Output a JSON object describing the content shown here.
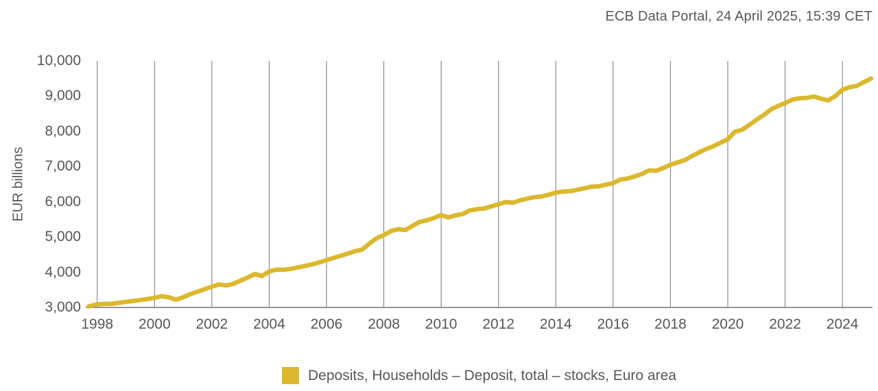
{
  "header": {
    "source_line": "ECB Data Portal, 24 April 2025, 15:39 CET"
  },
  "colors": {
    "series": "#DBB82D",
    "text": "#545659",
    "grid": "#747474",
    "axis": "#747474"
  },
  "legend": {
    "label": "Deposits, Households – Deposit, total – stocks, Euro area",
    "swatch_color": "#DBB82D"
  },
  "chart_data": {
    "type": "line",
    "title": "",
    "xlabel": "",
    "ylabel": "EUR billions",
    "unit": "EUR billions",
    "grid": "vertical-only",
    "legend_position": "bottom-center",
    "xlim": [
      1997.6,
      2025.05
    ],
    "ylim": [
      3000,
      10000
    ],
    "x_ticks": [
      1998,
      2000,
      2002,
      2004,
      2006,
      2008,
      2010,
      2012,
      2014,
      2016,
      2018,
      2020,
      2022,
      2024
    ],
    "y_ticks": [
      3000,
      4000,
      5000,
      6000,
      7000,
      8000,
      9000,
      10000
    ],
    "y_tick_labels": [
      "3,000",
      "4,000",
      "5,000",
      "6,000",
      "7,000",
      "8,000",
      "9,000",
      "10,000"
    ],
    "series": [
      {
        "name": "Deposits, Households – Deposit, total – stocks, Euro area",
        "color": "#DBB82D",
        "x": [
          1997.7,
          1998.0,
          1998.25,
          1998.5,
          1998.75,
          1999.0,
          1999.25,
          1999.5,
          1999.75,
          2000.0,
          2000.25,
          2000.5,
          2000.75,
          2001.0,
          2001.25,
          2001.5,
          2001.75,
          2002.0,
          2002.25,
          2002.5,
          2002.75,
          2003.0,
          2003.25,
          2003.5,
          2003.75,
          2004.0,
          2004.25,
          2004.5,
          2004.75,
          2005.0,
          2005.25,
          2005.5,
          2005.75,
          2006.0,
          2006.25,
          2006.5,
          2006.75,
          2007.0,
          2007.25,
          2007.5,
          2007.75,
          2008.0,
          2008.25,
          2008.5,
          2008.75,
          2009.0,
          2009.25,
          2009.5,
          2009.75,
          2010.0,
          2010.25,
          2010.5,
          2010.75,
          2011.0,
          2011.25,
          2011.5,
          2011.75,
          2012.0,
          2012.25,
          2012.5,
          2012.75,
          2013.0,
          2013.25,
          2013.5,
          2013.75,
          2014.0,
          2014.25,
          2014.5,
          2014.75,
          2015.0,
          2015.25,
          2015.5,
          2015.75,
          2016.0,
          2016.25,
          2016.5,
          2016.75,
          2017.0,
          2017.25,
          2017.5,
          2017.75,
          2018.0,
          2018.25,
          2018.5,
          2018.75,
          2019.0,
          2019.25,
          2019.5,
          2019.75,
          2020.0,
          2020.25,
          2020.5,
          2020.75,
          2021.0,
          2021.25,
          2021.5,
          2021.75,
          2022.0,
          2022.25,
          2022.5,
          2022.75,
          2023.0,
          2023.25,
          2023.5,
          2023.75,
          2024.0,
          2024.25,
          2024.5,
          2024.75,
          2025.0
        ],
        "values": [
          3030,
          3090,
          3100,
          3105,
          3130,
          3160,
          3185,
          3210,
          3240,
          3275,
          3320,
          3290,
          3220,
          3290,
          3380,
          3450,
          3520,
          3590,
          3655,
          3625,
          3670,
          3760,
          3850,
          3950,
          3890,
          4020,
          4075,
          4070,
          4095,
          4135,
          4180,
          4225,
          4280,
          4345,
          4405,
          4470,
          4530,
          4600,
          4645,
          4815,
          4965,
          5055,
          5170,
          5220,
          5200,
          5315,
          5430,
          5475,
          5540,
          5625,
          5555,
          5615,
          5650,
          5755,
          5790,
          5810,
          5870,
          5930,
          5995,
          5975,
          6040,
          6090,
          6130,
          6150,
          6200,
          6260,
          6290,
          6300,
          6340,
          6385,
          6430,
          6440,
          6490,
          6530,
          6630,
          6660,
          6720,
          6790,
          6890,
          6880,
          6960,
          7050,
          7120,
          7180,
          7300,
          7405,
          7500,
          7580,
          7680,
          7775,
          7990,
          8045,
          8180,
          8330,
          8460,
          8620,
          8720,
          8800,
          8900,
          8940,
          8950,
          8990,
          8930,
          8880,
          9000,
          9180,
          9255,
          9290,
          9400,
          9500
        ]
      }
    ]
  }
}
